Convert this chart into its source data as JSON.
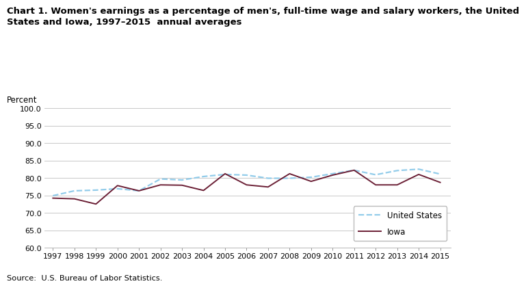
{
  "title_line1": "Chart 1. Women's earnings as a percentage of men's, full-time wage and salary workers, the United",
  "title_line2": "States and Iowa, 1997–2015  annual averages",
  "ylabel": "Percent",
  "source": "Source:  U.S. Bureau of Labor Statistics.",
  "years": [
    1997,
    1998,
    1999,
    2000,
    2001,
    2002,
    2003,
    2004,
    2005,
    2006,
    2007,
    2008,
    2009,
    2010,
    2011,
    2012,
    2013,
    2014,
    2015
  ],
  "us_values": [
    74.9,
    76.3,
    76.5,
    76.9,
    76.3,
    79.7,
    79.4,
    80.4,
    81.0,
    80.8,
    79.9,
    79.9,
    80.2,
    81.2,
    82.2,
    80.9,
    82.1,
    82.5,
    81.1
  ],
  "iowa_values": [
    74.2,
    74.0,
    72.5,
    77.8,
    76.3,
    78.0,
    77.9,
    76.4,
    81.2,
    78.0,
    77.4,
    81.2,
    79.0,
    80.8,
    82.2,
    78.0,
    78.0,
    81.0,
    78.7
  ],
  "us_color": "#92CCEA",
  "iowa_color": "#6B1F35",
  "ylim": [
    60.0,
    100.0
  ],
  "yticks": [
    60.0,
    65.0,
    70.0,
    75.0,
    80.0,
    85.0,
    90.0,
    95.0,
    100.0
  ],
  "grid_color": "#c8c8c8",
  "legend_labels": [
    "United States",
    "Iowa"
  ],
  "background_color": "#ffffff",
  "title_fontsize": 9.5,
  "tick_fontsize": 8,
  "ylabel_fontsize": 8.5
}
